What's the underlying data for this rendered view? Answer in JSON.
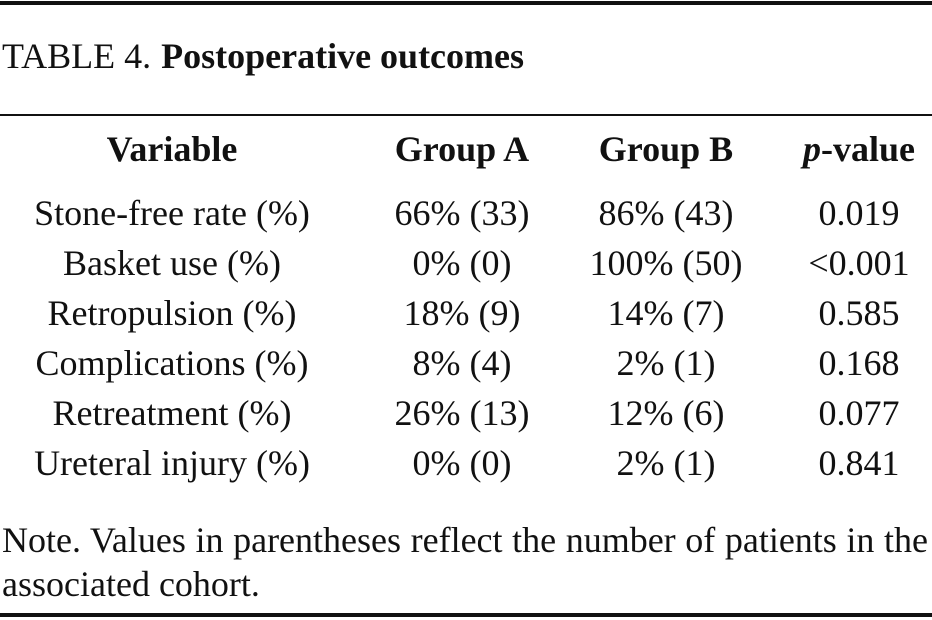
{
  "table": {
    "label": "TABLE 4.",
    "title": "Postoperative outcomes",
    "columns": [
      "Variable",
      "Group A",
      "Group B",
      {
        "italic": "p",
        "text": "-value"
      }
    ],
    "rows": [
      [
        "Stone-free rate (%)",
        "66% (33)",
        "86% (43)",
        "0.019"
      ],
      [
        "Basket use (%)",
        "0% (0)",
        "100% (50)",
        "<0.001"
      ],
      [
        "Retropulsion (%)",
        "18% (9)",
        "14% (7)",
        "0.585"
      ],
      [
        "Complications (%)",
        "8% (4)",
        "2% (1)",
        "0.168"
      ],
      [
        "Retreatment (%)",
        "26% (13)",
        "12% (6)",
        "0.077"
      ],
      [
        "Ureteral injury (%)",
        "0% (0)",
        "2% (1)",
        "0.841"
      ]
    ],
    "note": "Note. Values in parentheses reflect the number of patients in the associated cohort."
  }
}
